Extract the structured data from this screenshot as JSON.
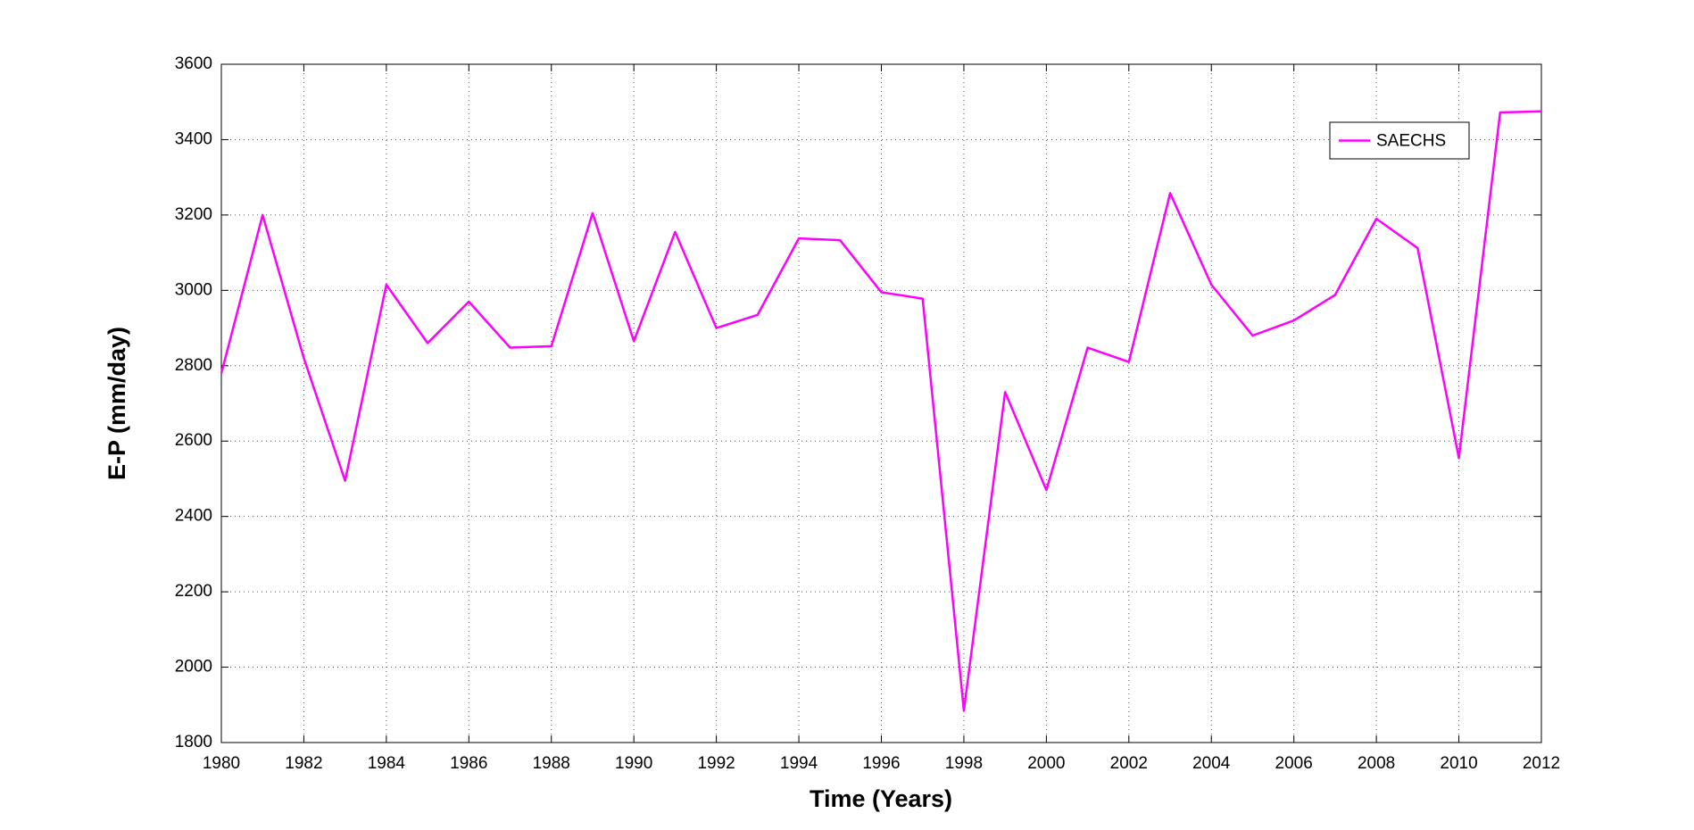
{
  "chart_data": {
    "type": "line",
    "xlabel": "Time (Years)",
    "ylabel": "E-P (mm/day)",
    "x": [
      1980,
      1981,
      1982,
      1983,
      1984,
      1985,
      1986,
      1987,
      1988,
      1989,
      1990,
      1991,
      1992,
      1993,
      1994,
      1995,
      1996,
      1997,
      1998,
      1999,
      2000,
      2001,
      2002,
      2003,
      2004,
      2005,
      2006,
      2007,
      2008,
      2009,
      2010,
      2011,
      2012
    ],
    "series": [
      {
        "name": "SAECHS",
        "color": "#ff00ff",
        "values": [
          2780,
          3200,
          2820,
          2495,
          3015,
          2860,
          2970,
          2848,
          2852,
          3205,
          2865,
          3155,
          2900,
          2935,
          3138,
          3133,
          2995,
          2978,
          1885,
          2730,
          2470,
          2848,
          2810,
          3258,
          3015,
          2880,
          2920,
          2988,
          3190,
          3112,
          2555,
          3472,
          3475
        ]
      }
    ],
    "xlim": [
      1980,
      2012
    ],
    "xticks": [
      1980,
      1982,
      1984,
      1986,
      1988,
      1990,
      1992,
      1994,
      1996,
      1998,
      2000,
      2002,
      2004,
      2006,
      2008,
      2010,
      2012
    ],
    "ylim": [
      1800,
      3600
    ],
    "yticks": [
      1800,
      2000,
      2200,
      2400,
      2600,
      2800,
      3000,
      3200,
      3400,
      3600
    ],
    "grid": true,
    "legend": "upper right"
  }
}
